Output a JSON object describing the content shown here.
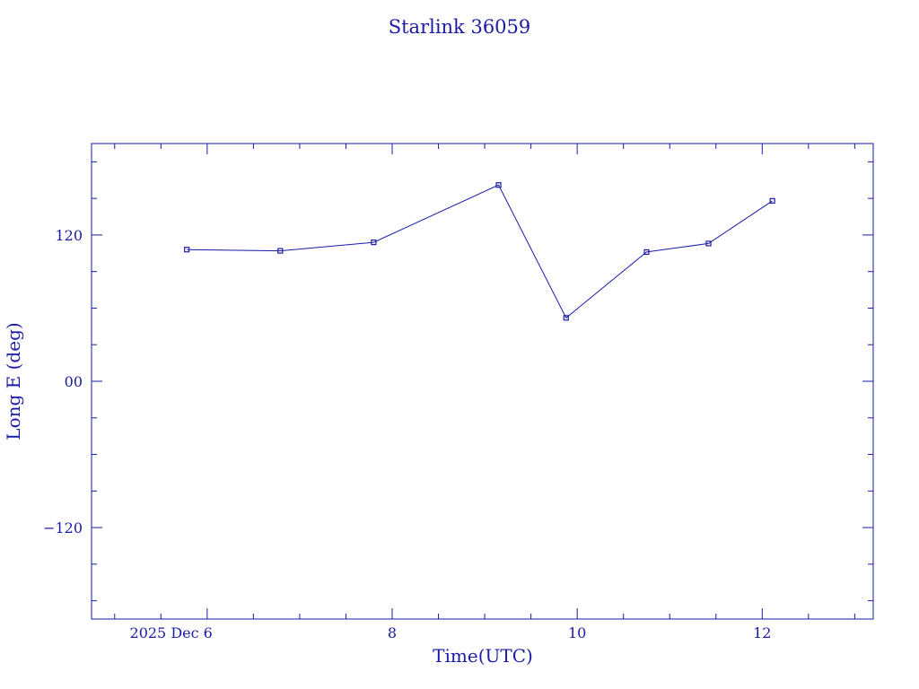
{
  "chart_data": {
    "type": "line",
    "title": "Starlink 36059",
    "xlabel": "Time(UTC)",
    "ylabel": "Long E (deg)",
    "x_unit": "day of December 2025",
    "xlim": [
      4.75,
      13.2
    ],
    "ylim": [
      -195,
      195
    ],
    "x_ticks": [
      {
        "value": 6,
        "label": "2025 Dec  6"
      },
      {
        "value": 8,
        "label": "8"
      },
      {
        "value": 10,
        "label": "10"
      },
      {
        "value": 12,
        "label": "12"
      }
    ],
    "y_ticks": [
      {
        "value": 120,
        "label": "120"
      },
      {
        "value": 0,
        "label": "00"
      },
      {
        "value": -120,
        "label": "-120"
      }
    ],
    "grid": false,
    "color": "#1a1aa6",
    "series": [
      {
        "x": [
          5.78,
          6.79,
          7.8,
          9.15,
          9.88,
          10.75,
          11.42,
          12.11
        ],
        "y": [
          108,
          107,
          114,
          161,
          52,
          106,
          113,
          148
        ]
      }
    ]
  }
}
